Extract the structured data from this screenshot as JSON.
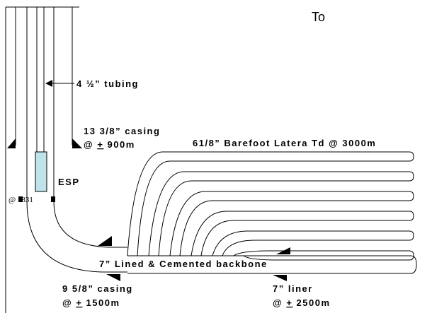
{
  "destination": "To",
  "tubing": "4 ½” tubing",
  "surface_casing": {
    "size": "13 3/8” casing",
    "at": "@",
    "pm": "+",
    "depth": "900m"
  },
  "lateral": "61/8” Barefoot Latera Td @ 3000m",
  "pump": {
    "name": "ESP",
    "depth": "@ 1831"
  },
  "backbone": "7” Lined & Cemented backbone",
  "intermediate_casing": {
    "size": "9 5/8” casing",
    "at": "@",
    "pm": "+",
    "depth": "1500m"
  },
  "liner": {
    "size": "7” liner",
    "at": "@",
    "pm": "+",
    "depth": "2500m"
  }
}
